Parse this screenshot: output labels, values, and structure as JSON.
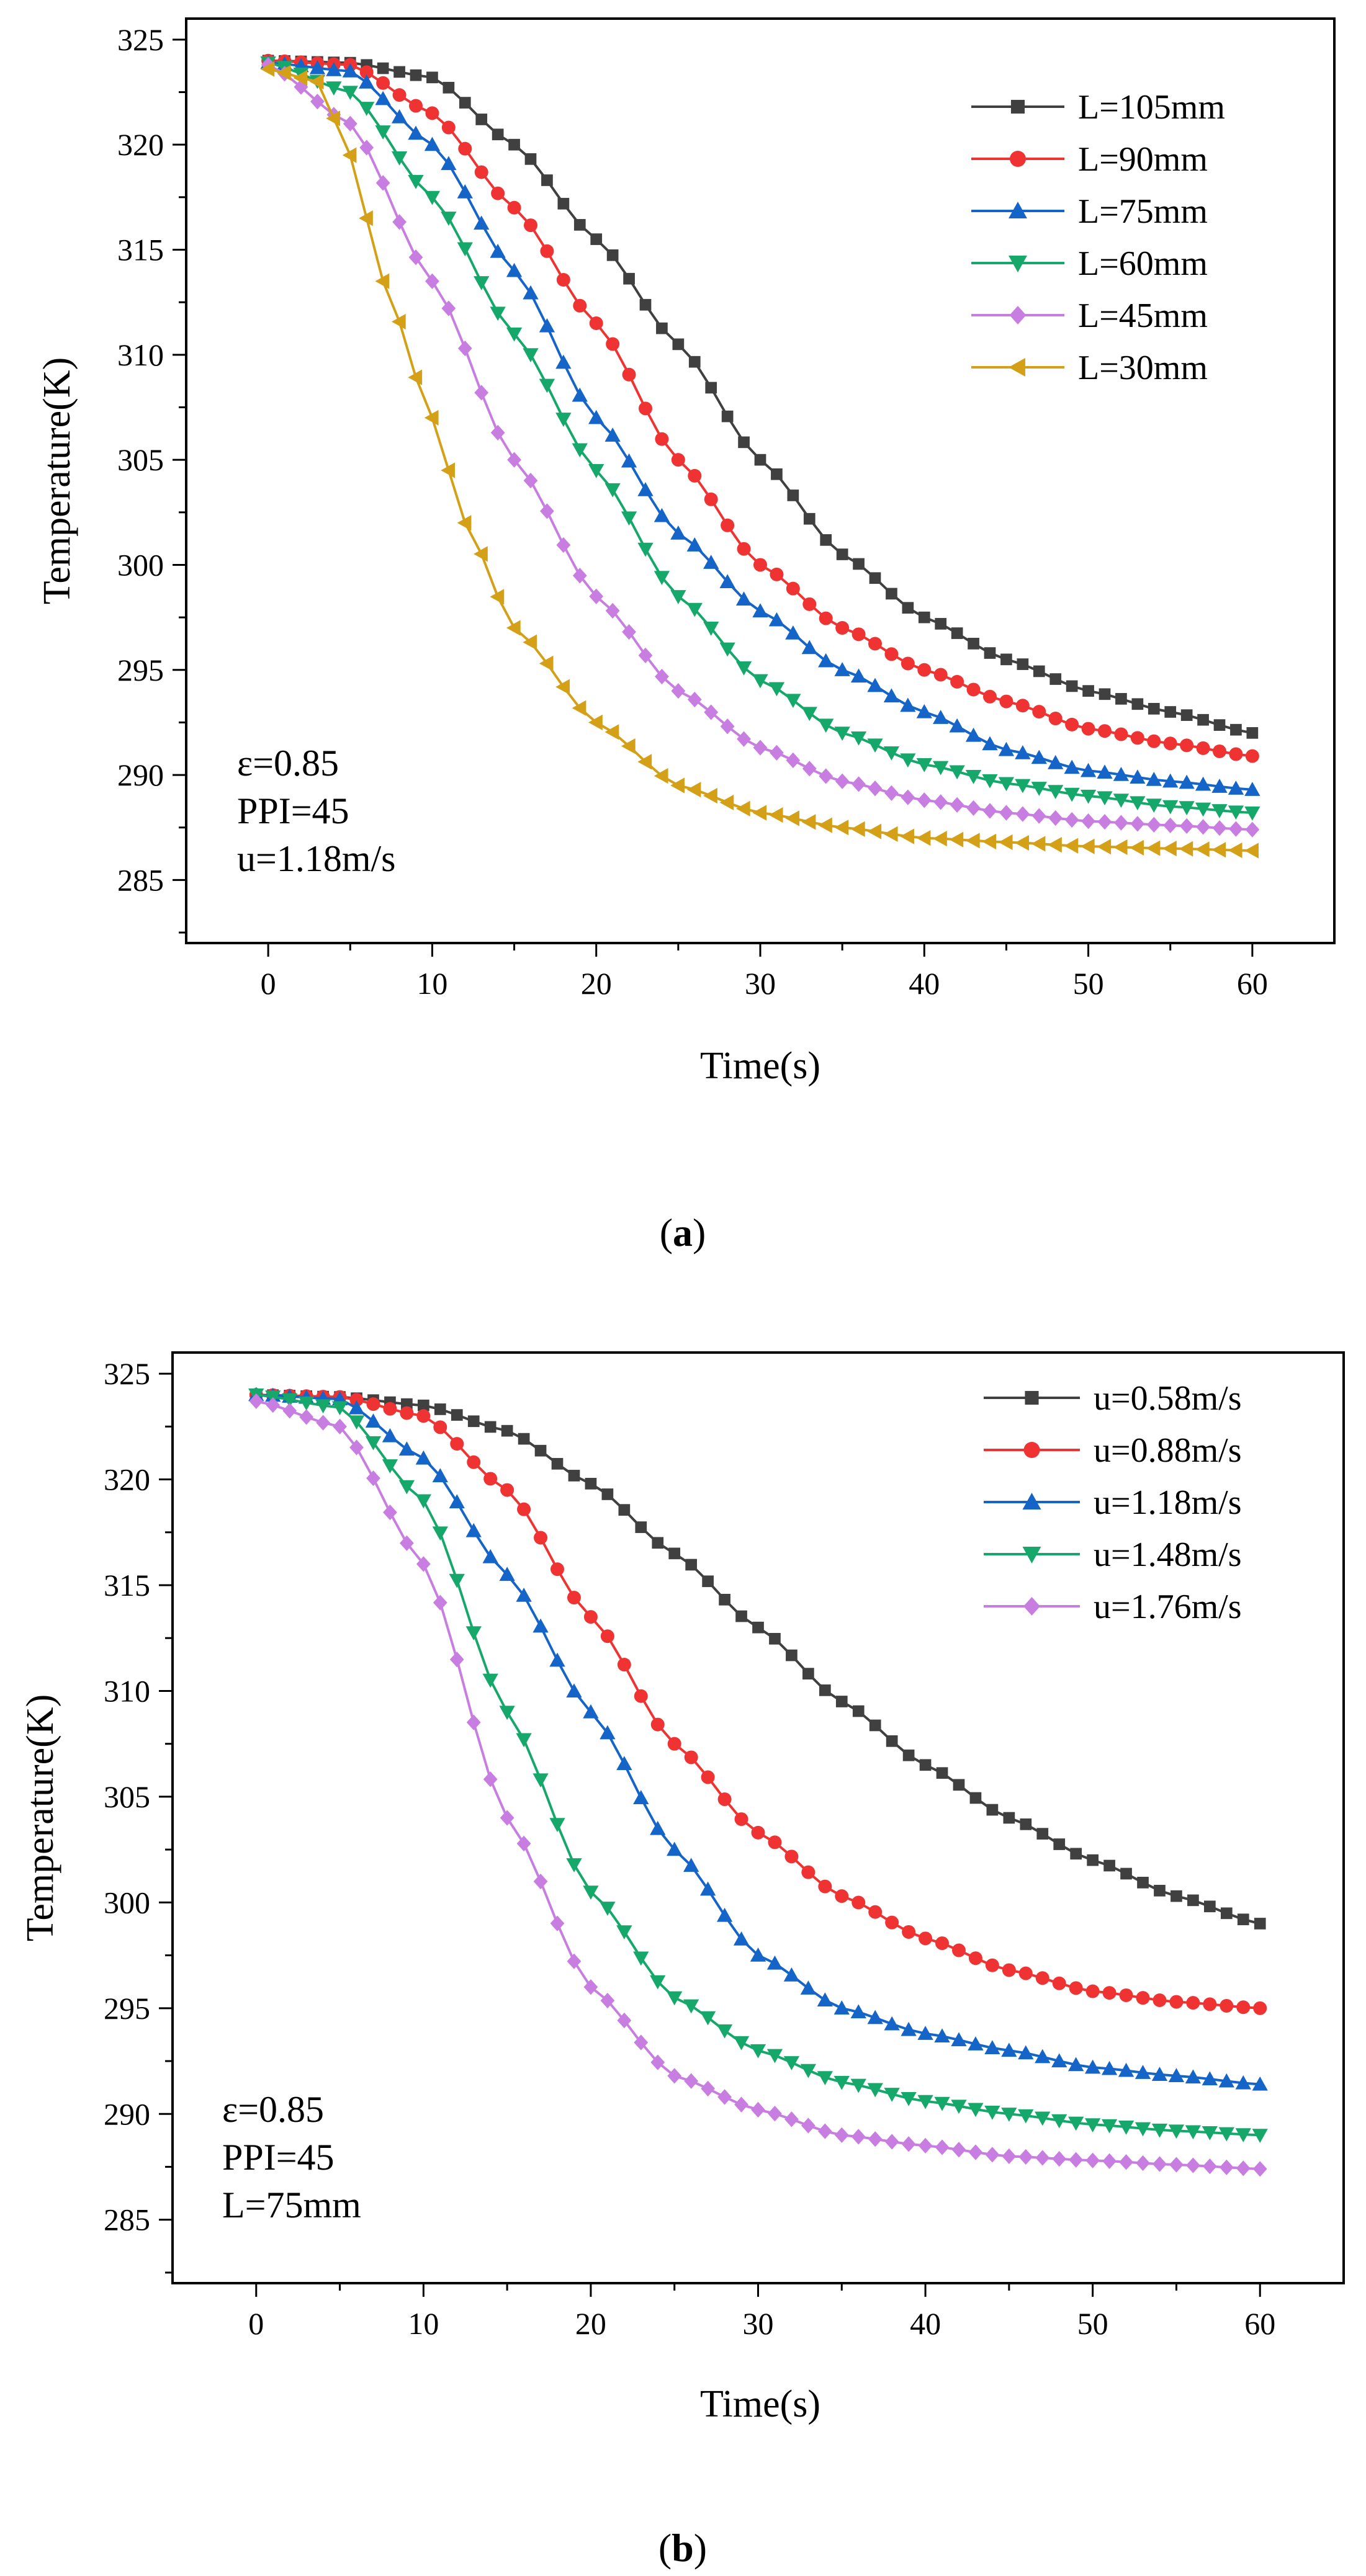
{
  "figure": {
    "caption_a_paren_open": "(",
    "caption_a_letter": "a",
    "caption_a_paren_close": ")",
    "caption_b_paren_open": "(",
    "caption_b_letter": "b",
    "caption_b_paren_close": ")"
  },
  "chart_data": [
    {
      "type": "line",
      "panel": "a",
      "xlabel": "Time(s)",
      "ylabel": "Temperature(K)",
      "xlim": [
        -5,
        65
      ],
      "ylim": [
        282,
        326
      ],
      "xticks": [
        0,
        10,
        20,
        30,
        40,
        50,
        60
      ],
      "xtick_labels": [
        "0",
        "10",
        "20",
        "30",
        "40",
        "50",
        "60"
      ],
      "yticks": [
        285,
        290,
        295,
        300,
        305,
        310,
        315,
        320,
        325
      ],
      "ytick_labels": [
        "285",
        "290",
        "295",
        "300",
        "305",
        "310",
        "315",
        "320",
        "325"
      ],
      "legend_position": "top-right",
      "annotations": [
        "ε=0.85",
        "PPI=45",
        "u=1.18m/s"
      ],
      "x_start": 0,
      "x_end": 60,
      "x_step": 1,
      "series": [
        {
          "name": "L=105mm",
          "color": "#404040",
          "marker": "square",
          "keyframes_x": [
            0,
            5,
            10,
            15,
            20,
            25,
            30,
            35,
            40,
            45,
            50,
            55,
            60
          ],
          "keyframes_y": [
            324,
            323.9,
            323.2,
            320,
            315.5,
            310.5,
            305,
            300.5,
            297.5,
            295.5,
            294,
            293,
            292
          ]
        },
        {
          "name": "L=90mm",
          "color": "#ef3333",
          "marker": "circle",
          "keyframes_x": [
            0,
            5,
            10,
            15,
            20,
            25,
            30,
            35,
            40,
            45,
            50,
            55,
            60
          ],
          "keyframes_y": [
            324,
            323.8,
            321.5,
            317,
            311.5,
            305,
            300,
            297,
            295,
            293.5,
            292.2,
            291.5,
            290.9
          ]
        },
        {
          "name": "L=75mm",
          "color": "#1565c8",
          "marker": "triangle-up",
          "keyframes_x": [
            0,
            5,
            10,
            15,
            20,
            25,
            30,
            35,
            40,
            45,
            50,
            55,
            60
          ],
          "keyframes_y": [
            323.9,
            323.5,
            320,
            314,
            307,
            301.5,
            297.8,
            295,
            293,
            291.2,
            290.2,
            289.7,
            289.3
          ]
        },
        {
          "name": "L=60mm",
          "color": "#16a86a",
          "marker": "triangle-down",
          "keyframes_x": [
            0,
            5,
            10,
            15,
            20,
            25,
            30,
            35,
            40,
            45,
            50,
            55,
            60
          ],
          "keyframes_y": [
            323.9,
            322.5,
            317.5,
            311,
            304.5,
            298.5,
            294.5,
            292,
            290.5,
            289.6,
            289,
            288.5,
            288.2
          ]
        },
        {
          "name": "L=45mm",
          "color": "#c77ee0",
          "marker": "diamond",
          "keyframes_x": [
            0,
            5,
            10,
            15,
            20,
            25,
            30,
            35,
            40,
            45,
            50,
            55,
            60
          ],
          "keyframes_y": [
            323.8,
            321,
            313.5,
            305,
            298.5,
            294,
            291.3,
            289.7,
            288.8,
            288.2,
            287.8,
            287.6,
            287.4
          ]
        },
        {
          "name": "L=30mm",
          "color": "#d4a017",
          "marker": "triangle-left",
          "keyframes_x": [
            0,
            3,
            5,
            7,
            10,
            12,
            15,
            20,
            25,
            30,
            35,
            40,
            45,
            50,
            55,
            60
          ],
          "keyframes_y": [
            323.6,
            323,
            319.5,
            313.5,
            307,
            302,
            297,
            292.5,
            289.5,
            288.2,
            287.5,
            287,
            286.8,
            286.6,
            286.5,
            286.4
          ]
        }
      ]
    },
    {
      "type": "line",
      "panel": "b",
      "xlabel": "Time(s)",
      "ylabel": "Temperature(K)",
      "xlim": [
        -5,
        65
      ],
      "ylim": [
        282,
        326
      ],
      "xticks": [
        0,
        10,
        20,
        30,
        40,
        50,
        60
      ],
      "xtick_labels": [
        "0",
        "10",
        "20",
        "30",
        "40",
        "50",
        "60"
      ],
      "yticks": [
        285,
        290,
        295,
        300,
        305,
        310,
        315,
        320,
        325
      ],
      "ytick_labels": [
        "285",
        "290",
        "295",
        "300",
        "305",
        "310",
        "315",
        "320",
        "325"
      ],
      "legend_position": "top-right",
      "annotations": [
        "ε=0.85",
        "PPI=45",
        "L=75mm"
      ],
      "x_start": 0,
      "x_end": 60,
      "x_step": 1,
      "series": [
        {
          "name": "u=0.58m/s",
          "color": "#404040",
          "marker": "square",
          "keyframes_x": [
            0,
            5,
            10,
            15,
            20,
            25,
            30,
            35,
            40,
            45,
            50,
            55,
            60
          ],
          "keyframes_y": [
            324,
            323.9,
            323.5,
            322.3,
            319.8,
            316.5,
            313,
            309.5,
            306.5,
            304,
            302,
            300.3,
            299
          ]
        },
        {
          "name": "u=0.88m/s",
          "color": "#ef3333",
          "marker": "circle",
          "keyframes_x": [
            0,
            5,
            10,
            15,
            20,
            25,
            30,
            35,
            40,
            45,
            50,
            55,
            60
          ],
          "keyframes_y": [
            324,
            323.9,
            323,
            319.5,
            313.5,
            307.5,
            303.3,
            300.3,
            298.3,
            296.8,
            295.8,
            295.3,
            295
          ]
        },
        {
          "name": "u=1.18m/s",
          "color": "#1565c8",
          "marker": "triangle-up",
          "keyframes_x": [
            0,
            5,
            10,
            15,
            20,
            25,
            30,
            35,
            40,
            45,
            50,
            55,
            60
          ],
          "keyframes_y": [
            324,
            323.8,
            321,
            315.5,
            309,
            302.5,
            297.5,
            295,
            293.8,
            293,
            292.2,
            291.8,
            291.4
          ]
        },
        {
          "name": "u=1.48m/s",
          "color": "#16a86a",
          "marker": "triangle-down",
          "keyframes_x": [
            0,
            5,
            10,
            15,
            20,
            25,
            30,
            35,
            40,
            45,
            50,
            55,
            60
          ],
          "keyframes_y": [
            324,
            323.4,
            319,
            309,
            300.5,
            295.5,
            293,
            291.5,
            290.6,
            290,
            289.5,
            289.2,
            289
          ]
        },
        {
          "name": "u=1.76m/s",
          "color": "#c77ee0",
          "marker": "diamond",
          "keyframes_x": [
            0,
            5,
            10,
            15,
            20,
            25,
            30,
            35,
            40,
            45,
            50,
            55,
            60
          ],
          "keyframes_y": [
            323.7,
            322.5,
            316,
            304,
            296,
            291.8,
            290.2,
            289,
            288.5,
            288,
            287.8,
            287.6,
            287.4
          ]
        }
      ]
    }
  ]
}
